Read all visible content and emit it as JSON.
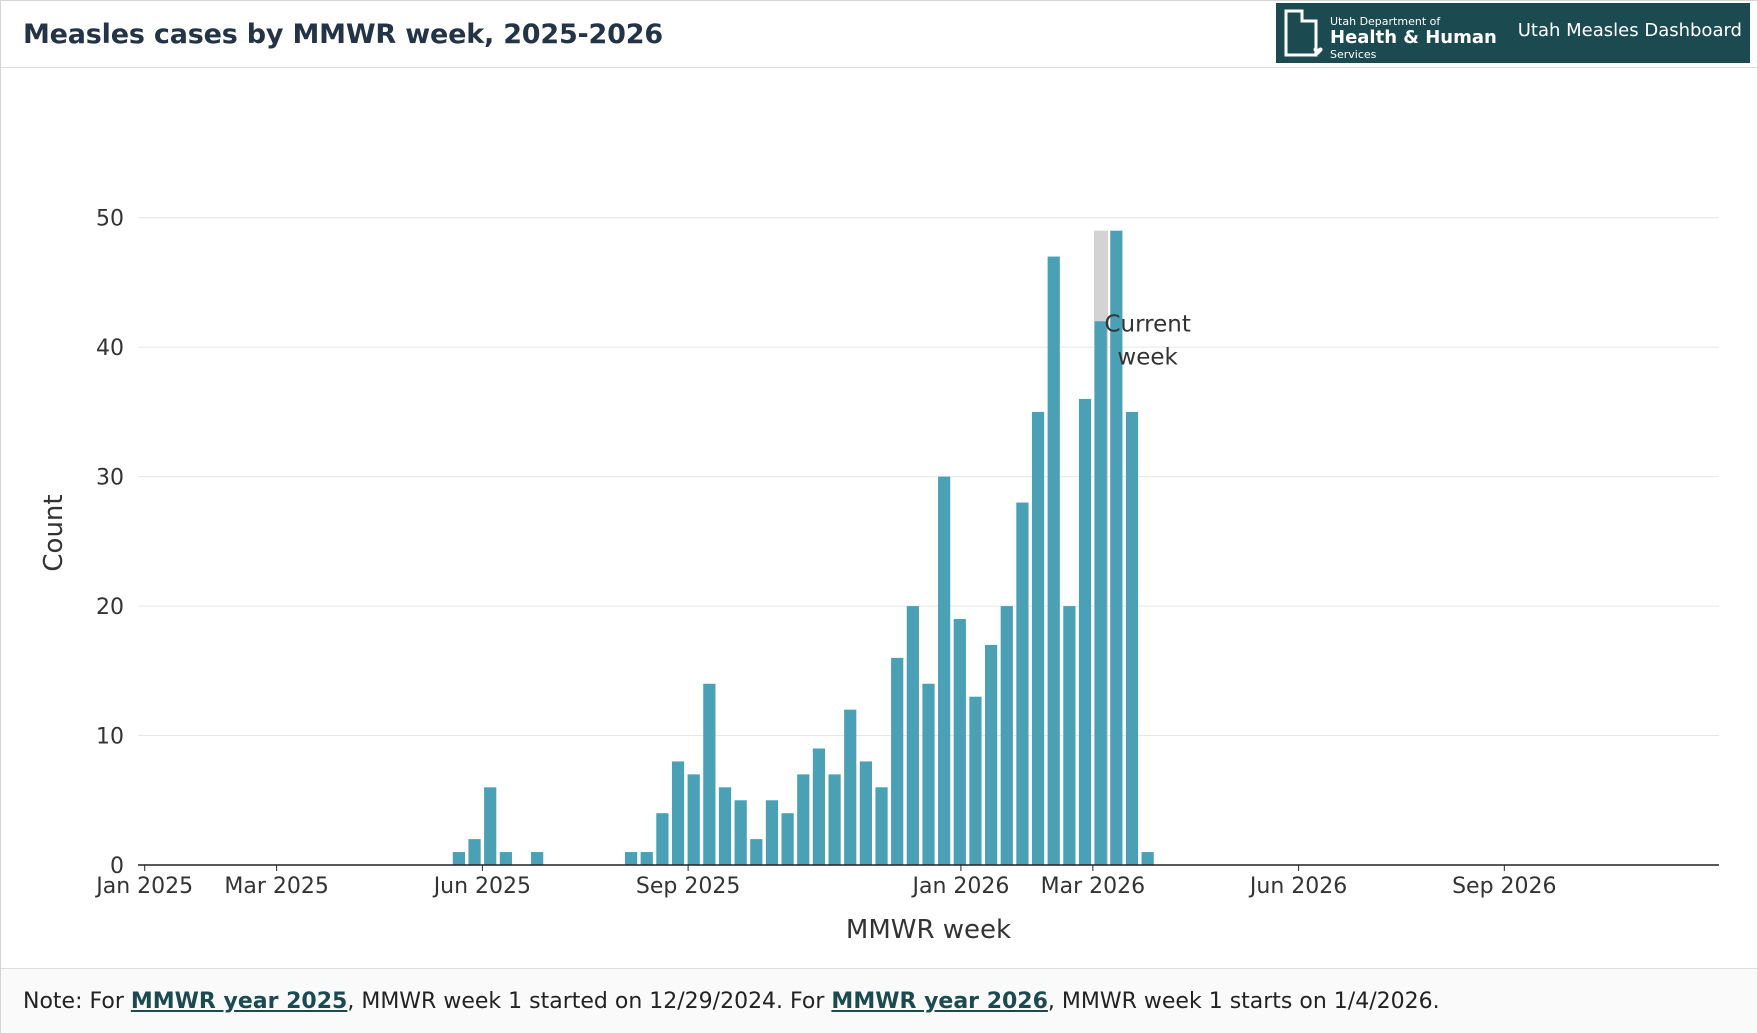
{
  "header": {
    "title": "Measles cases by MMWR week, 2025-2026",
    "brand_line1": "Utah Department of",
    "brand_line2": "Health & Human",
    "brand_line3": "Services",
    "dashboard_link": "Utah Measles Dashboard"
  },
  "footer": {
    "note_prefix": "Note: For ",
    "link1": "MMWR year 2025",
    "note_middle": ", MMWR week 1 started on 12/29/2024. For ",
    "link2": "MMWR year 2026",
    "note_suffix": ", MMWR week 1 starts on 1/4/2026."
  },
  "colors": {
    "bar": "#4aa0b5",
    "current_week_band": "#d3d3d3",
    "brand_bg": "#1b4a50",
    "title": "#243447"
  },
  "chart_data": {
    "type": "bar",
    "title": "",
    "xlabel": "MMWR week",
    "ylabel": "Count",
    "ylim": [
      0,
      55
    ],
    "yticks": [
      0,
      10,
      20,
      30,
      40,
      50
    ],
    "xlim": [
      "2024-12-29",
      "2026-12-06"
    ],
    "xticks": [
      {
        "date": "2025-01-01",
        "label": "Jan 2025"
      },
      {
        "date": "2025-03-01",
        "label": "Mar 2025"
      },
      {
        "date": "2025-06-01",
        "label": "Jun 2025"
      },
      {
        "date": "2025-09-01",
        "label": "Sep 2025"
      },
      {
        "date": "2026-01-01",
        "label": "Jan 2026"
      },
      {
        "date": "2026-03-01",
        "label": "Mar 2026"
      },
      {
        "date": "2026-06-01",
        "label": "Jun 2026"
      },
      {
        "date": "2026-09-01",
        "label": "Sep 2026"
      }
    ],
    "grid": true,
    "annotation": {
      "text_lines": [
        "Current",
        "week"
      ],
      "week_start": "2026-02-22"
    },
    "series": [
      {
        "weeks": [
          "2025-05-18",
          "2025-05-25",
          "2025-06-01",
          "2025-06-08",
          "2025-06-22",
          "2025-08-03",
          "2025-08-10",
          "2025-08-17",
          "2025-08-24",
          "2025-08-31",
          "2025-09-07",
          "2025-09-14",
          "2025-09-21",
          "2025-09-28",
          "2025-10-05",
          "2025-10-12",
          "2025-10-19",
          "2025-10-26",
          "2025-11-02",
          "2025-11-09",
          "2025-11-16",
          "2025-11-23",
          "2025-11-30",
          "2025-12-07",
          "2025-12-14",
          "2025-12-21",
          "2025-12-28",
          "2026-01-04",
          "2026-01-11",
          "2026-01-18",
          "2026-01-25",
          "2026-02-01",
          "2026-02-08",
          "2026-02-15",
          "2026-02-22",
          "2026-03-01",
          "2026-03-08"
        ],
        "values": [
          1,
          2,
          6,
          1,
          1,
          1,
          1,
          4,
          8,
          7,
          14,
          6,
          5,
          2,
          5,
          4,
          7,
          9,
          7,
          12,
          8,
          6,
          16,
          20,
          14,
          30,
          19,
          13,
          17,
          20,
          28,
          35,
          47,
          20,
          36,
          42,
          49
        ]
      }
    ],
    "trailing_bars": [
      {
        "week": "2026-03-15",
        "value": 35
      },
      {
        "week": "2026-03-22",
        "value": 1
      }
    ]
  }
}
